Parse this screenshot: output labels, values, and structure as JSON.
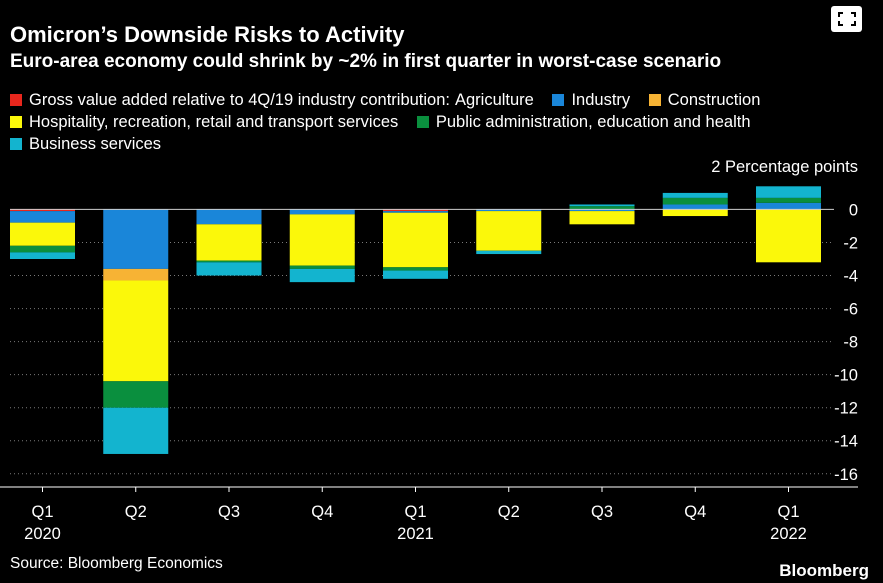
{
  "title": "Omicron’s Downside Risks to Activity",
  "subtitle": "Euro-area economy could shrink by ~2% in first quarter in worst-case scenario",
  "legend_prefix": "Gross value added relative to 4Q/19 industry contribution:",
  "unit_label": "2 Percentage points",
  "source": "Source: Bloomberg Economics",
  "brand": "Bloomberg",
  "chart_data": {
    "type": "bar",
    "stacked": true,
    "categories": [
      "Q1 2020",
      "Q2 2020",
      "Q3 2020",
      "Q4 2020",
      "Q1 2021",
      "Q2 2021",
      "Q3 2021",
      "Q4 2021",
      "Q1 2022"
    ],
    "tick_labels": [
      {
        "quarter": "Q1",
        "year": "2020"
      },
      {
        "quarter": "Q2",
        "year": ""
      },
      {
        "quarter": "Q3",
        "year": ""
      },
      {
        "quarter": "Q4",
        "year": ""
      },
      {
        "quarter": "Q1",
        "year": "2021"
      },
      {
        "quarter": "Q2",
        "year": ""
      },
      {
        "quarter": "Q3",
        "year": ""
      },
      {
        "quarter": "Q4",
        "year": ""
      },
      {
        "quarter": "Q1",
        "year": "2022"
      }
    ],
    "series": [
      {
        "name": "Agriculture",
        "color": "#e8271d",
        "values": [
          -0.1,
          0,
          0,
          0,
          -0.1,
          0,
          0,
          0,
          0
        ]
      },
      {
        "name": "Industry",
        "color": "#1a86d9",
        "values": [
          -0.7,
          -3.6,
          -0.9,
          -0.3,
          -0.1,
          -0.1,
          -0.1,
          0.3,
          0.4
        ]
      },
      {
        "name": "Construction",
        "color": "#f7b334",
        "values": [
          0,
          -0.7,
          0,
          0,
          0,
          0,
          0,
          0,
          0
        ]
      },
      {
        "name": "Hospitality, recreation, retail and transport services",
        "color": "#fbf80a",
        "values": [
          -1.4,
          -6.1,
          -2.2,
          -3.1,
          -3.3,
          -2.4,
          -0.8,
          -0.4,
          -3.2
        ]
      },
      {
        "name": "Public administration, education and health",
        "color": "#0a8f3e",
        "values": [
          -0.4,
          -1.6,
          -0.1,
          -0.2,
          -0.2,
          0,
          0.2,
          0.4,
          0.3
        ]
      },
      {
        "name": "Business services",
        "color": "#13b4cf",
        "values": [
          -0.4,
          -2.8,
          -0.8,
          -0.8,
          -0.5,
          -0.2,
          0.1,
          0.3,
          0.7
        ]
      }
    ],
    "ylim": [
      -16.8,
      1.6
    ],
    "yticks": [
      0,
      -2,
      -4,
      -6,
      -8,
      -10,
      -12,
      -14,
      -16
    ],
    "ytick_labels": [
      "0",
      "-2",
      "-4",
      "-6",
      "-8",
      "-10",
      "-12",
      "-14",
      "-16"
    ],
    "xlabel": "",
    "ylabel": "Percentage points",
    "grid": true
  }
}
